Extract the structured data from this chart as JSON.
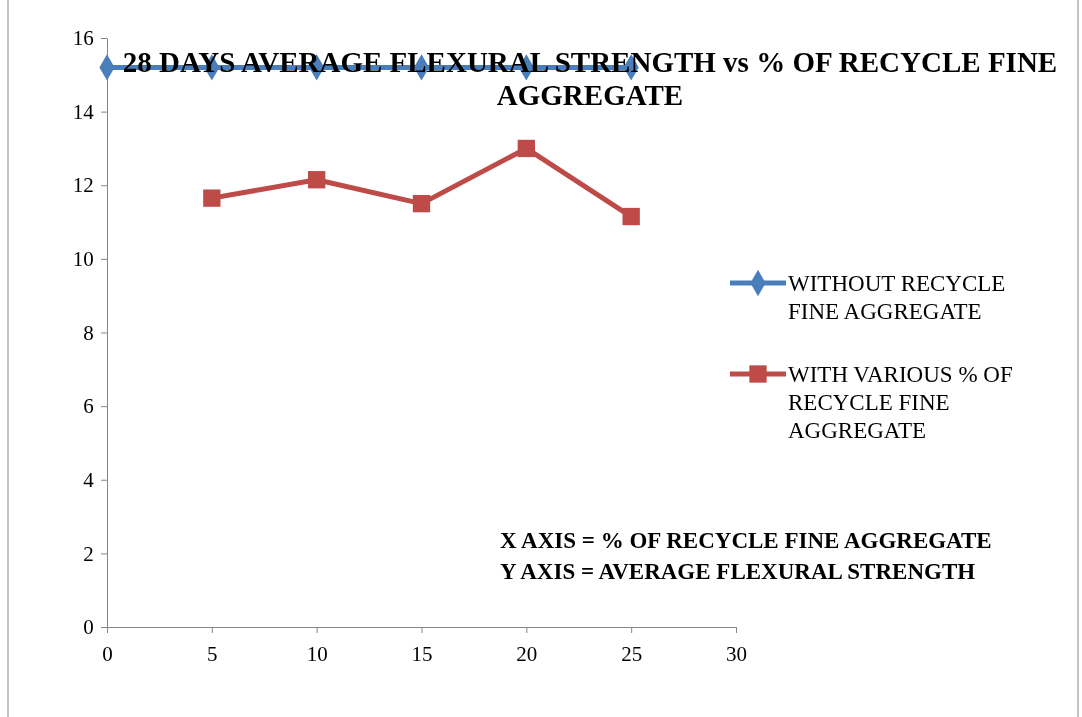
{
  "chart_data": {
    "type": "line",
    "title": "28 DAYS AVERAGE FLEXURAL STRENGTH vs % OF RECYCLE FINE AGGREGATE",
    "xlim": [
      0,
      30
    ],
    "xticks": [
      0,
      5,
      10,
      15,
      20,
      25,
      30
    ],
    "ylim": [
      0,
      16
    ],
    "yticks": [
      0,
      2,
      4,
      6,
      8,
      10,
      12,
      14,
      16
    ],
    "grid": false,
    "legend": "right",
    "line_style": "solid",
    "series": [
      {
        "name": "WITHOUT RECYCLE FINE AGGREGATE",
        "color": "#4a7ebb",
        "marker": "diamond",
        "x": [
          0,
          5,
          10,
          15,
          20,
          25
        ],
        "values": [
          15.2,
          15.2,
          15.2,
          15.2,
          15.2,
          15.2
        ]
      },
      {
        "name": "WITH VARIOUS % OF RECYCLE FINE AGGREGATE",
        "color": "#be4b48",
        "marker": "square",
        "x": [
          5,
          10,
          15,
          20,
          25
        ],
        "values": [
          11.65,
          12.15,
          11.5,
          13.0,
          11.15
        ]
      }
    ],
    "annotations": [
      "X AXIS = % OF RECYCLE FINE AGGREGATE",
      "Y AXIS = AVERAGE FLEXURAL STRENGTH"
    ]
  }
}
